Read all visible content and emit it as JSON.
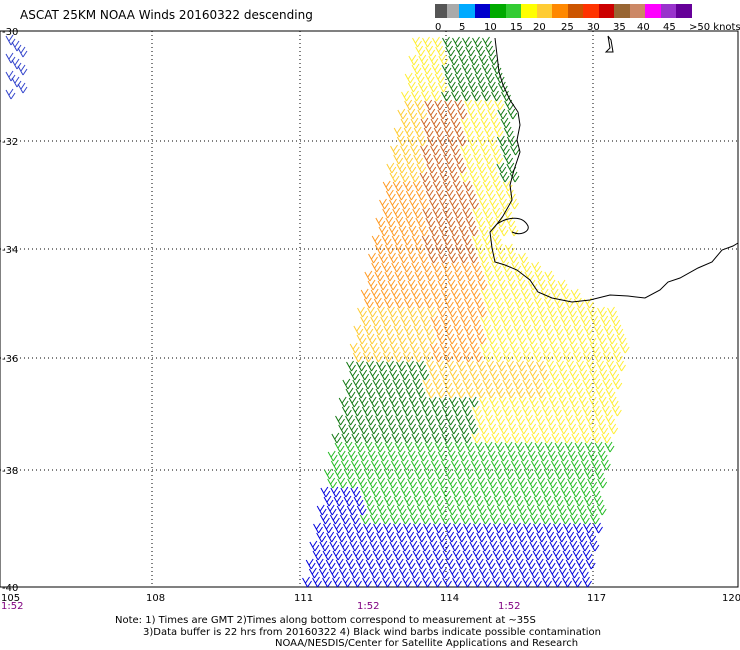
{
  "title": "ASCAT 25KM NOAA Winds 20160322 descending",
  "legend": {
    "colors": [
      "#555555",
      "#aaaaaa",
      "#00aaff",
      "#0000cc",
      "#00aa00",
      "#33cc33",
      "#ffff00",
      "#ffcc33",
      "#ff8800",
      "#cc5500",
      "#ff3300",
      "#cc0000",
      "#996633",
      "#cc8866",
      "#ff00ff",
      "#9933cc",
      "#660099"
    ],
    "labels": [
      "0",
      "5",
      "10",
      "15",
      "20",
      "25",
      "30",
      "35",
      "40",
      "45",
      ">50 knots"
    ]
  },
  "lat_labels": [
    "-30",
    "-32",
    "-34",
    "-36",
    "-38",
    "-40"
  ],
  "lon_labels": [
    "105",
    "108",
    "111",
    "114",
    "117",
    "120"
  ],
  "time_labels": [
    "1:52",
    "1:52",
    "1:52"
  ],
  "notes": [
    "Note: 1) Times are GMT 2)Times along bottom correspond to measurement at ~35S",
    "3)Data buffer is 22 hrs from 20160322 4) Black wind barbs indicate possible contamination",
    "NOAA/NESDIS/Center for Satellite Applications and Research"
  ]
}
